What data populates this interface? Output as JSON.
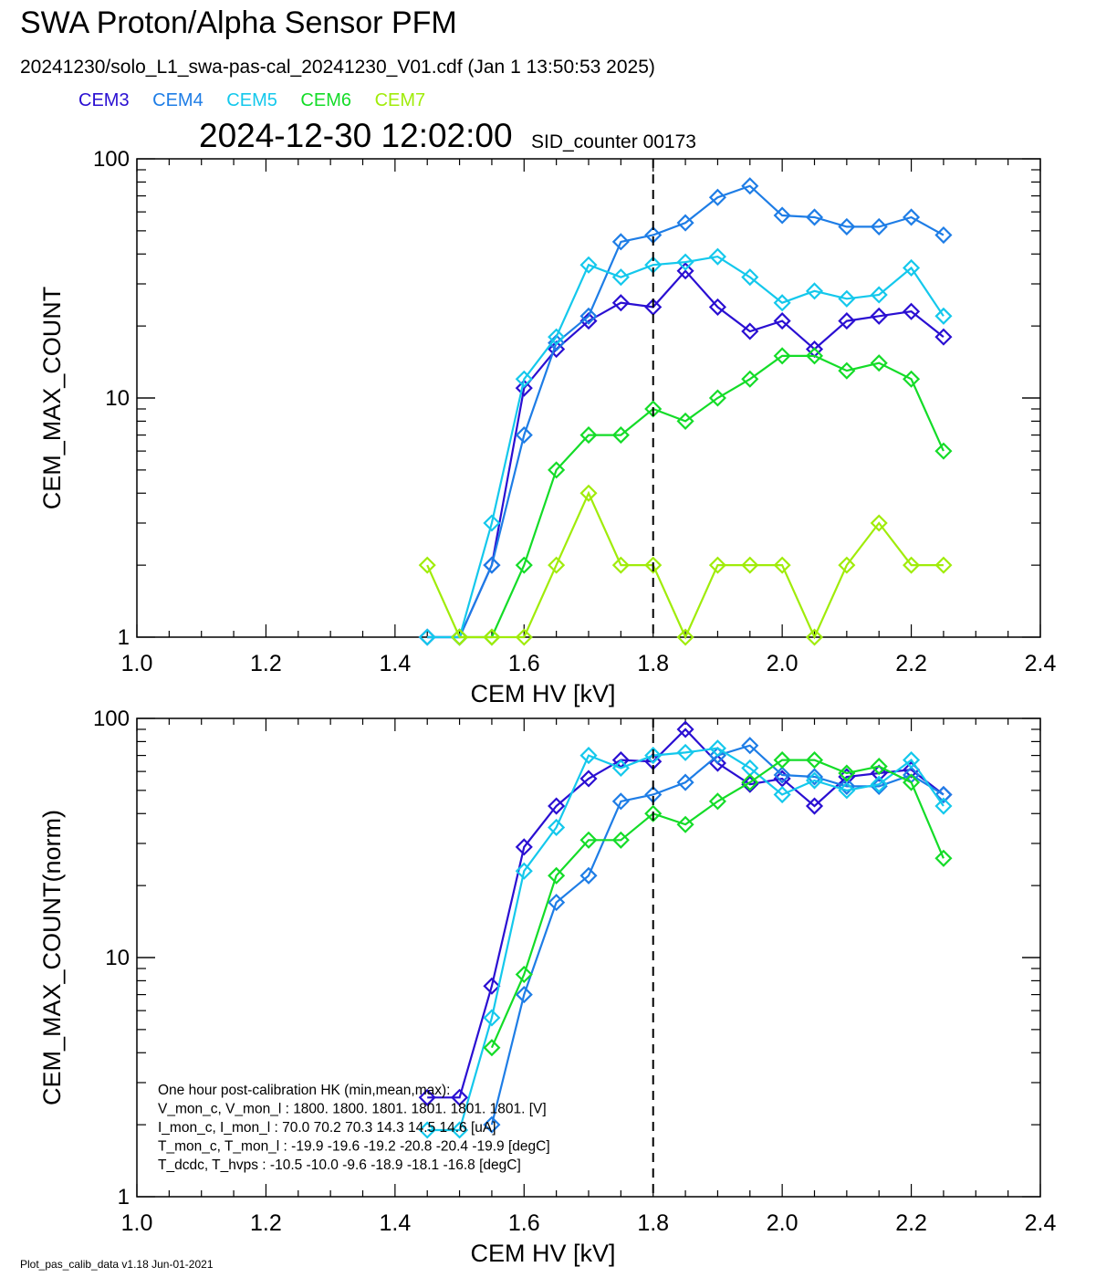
{
  "title": "SWA Proton/Alpha Sensor PFM",
  "file_line": "20241230/solo_L1_swa-pas-cal_20241230_V01.cdf  (Jan  1 13:50:53 2025)",
  "legend": [
    {
      "name": "CEM3",
      "color": "#2a0fd2"
    },
    {
      "name": "CEM4",
      "color": "#1e7de6"
    },
    {
      "name": "CEM5",
      "color": "#14c8ec"
    },
    {
      "name": "CEM6",
      "color": "#14dc28"
    },
    {
      "name": "CEM7",
      "color": "#a0ec0a"
    }
  ],
  "timestamp": "2024-12-30 12:02:00",
  "sid_counter": "SID_counter 00173",
  "footer": "Plot_pas_calib_data v1.18 Jun-01-2021",
  "hk_box": {
    "lines": [
      "One hour post-calibration HK (min,mean,max):",
      "V_mon_c, V_mon_l :    1800.  1800.  1801.       1801.  1801.  1801. [V]",
      "I_mon_c,  I_mon_l :     70.0   70.2   70.3        14.3   14.5   14.6  [uA]",
      "T_mon_c, T_mon_l :   -19.9  -19.6  -19.2        -20.8  -20.4  -19.9  [degC]",
      "T_dcdc,    T_hvps :    -10.5  -10.0   -9.6        -18.9  -18.1  -16.8  [degC]"
    ]
  },
  "chart_data": [
    {
      "type": "line",
      "xlabel": "CEM HV [kV]",
      "ylabel": "CEM_MAX_COUNT",
      "xlim": [
        1.0,
        2.4
      ],
      "ylim": [
        1,
        100
      ],
      "yscale": "log",
      "x_ticks": [
        "1.0",
        "1.2",
        "1.4",
        "1.6",
        "1.8",
        "2.0",
        "2.2",
        "2.4"
      ],
      "y_ticks": [
        "1",
        "10",
        "100"
      ],
      "marker": "diamond",
      "vline_x": 1.8,
      "x": [
        1.45,
        1.5,
        1.55,
        1.6,
        1.65,
        1.7,
        1.75,
        1.8,
        1.85,
        1.9,
        1.95,
        2.0,
        2.05,
        2.1,
        2.15,
        2.2,
        2.25
      ],
      "series": [
        {
          "name": "CEM3",
          "color": "#2a0fd2",
          "values": [
            1,
            1,
            2,
            11,
            16,
            21,
            25,
            24,
            34,
            24,
            19,
            21,
            16,
            21,
            22,
            23,
            18
          ]
        },
        {
          "name": "CEM4",
          "color": "#1e7de6",
          "values": [
            1,
            1,
            2,
            7,
            17,
            22,
            45,
            48,
            54,
            69,
            77,
            58,
            57,
            52,
            52,
            57,
            48
          ]
        },
        {
          "name": "CEM5",
          "color": "#14c8ec",
          "values": [
            1,
            1,
            3,
            12,
            18,
            36,
            32,
            36,
            37,
            39,
            32,
            25,
            28,
            26,
            27,
            35,
            22
          ]
        },
        {
          "name": "CEM6",
          "color": "#14dc28",
          "values": [
            null,
            1,
            1,
            2,
            5,
            7,
            7,
            9,
            8,
            10,
            12,
            15,
            15,
            13,
            14,
            12,
            6
          ]
        },
        {
          "name": "CEM7",
          "color": "#a0ec0a",
          "values": [
            2,
            1,
            1,
            1,
            2,
            4,
            2,
            2,
            1,
            2,
            2,
            2,
            1,
            2,
            3,
            2,
            2
          ]
        }
      ]
    },
    {
      "type": "line",
      "xlabel": "CEM HV [kV]",
      "ylabel": "CEM_MAX_COUNT(norm)",
      "xlim": [
        1.0,
        2.4
      ],
      "ylim": [
        1,
        100
      ],
      "yscale": "log",
      "x_ticks": [
        "1.0",
        "1.2",
        "1.4",
        "1.6",
        "1.8",
        "2.0",
        "2.2",
        "2.4"
      ],
      "y_ticks": [
        "1",
        "10",
        "100"
      ],
      "marker": "diamond",
      "vline_x": 1.8,
      "x": [
        1.45,
        1.5,
        1.55,
        1.6,
        1.65,
        1.7,
        1.75,
        1.8,
        1.85,
        1.9,
        1.95,
        2.0,
        2.05,
        2.1,
        2.15,
        2.2,
        2.25
      ],
      "series": [
        {
          "name": "CEM3",
          "color": "#2a0fd2",
          "values": [
            2.6,
            2.6,
            7.6,
            29,
            43,
            56,
            67,
            66,
            90,
            65,
            53,
            56,
            43,
            57,
            59,
            61,
            48
          ]
        },
        {
          "name": "CEM4",
          "color": "#1e7de6",
          "values": [
            null,
            null,
            2.0,
            7.0,
            17,
            22,
            45,
            48,
            54,
            70,
            77,
            58,
            57,
            52,
            52,
            58,
            48
          ]
        },
        {
          "name": "CEM5",
          "color": "#14c8ec",
          "values": [
            1.9,
            1.9,
            5.6,
            23,
            35,
            70,
            62,
            70,
            72,
            75,
            62,
            48,
            55,
            50,
            53,
            67,
            43
          ]
        },
        {
          "name": "CEM6",
          "color": "#14dc28",
          "values": [
            null,
            null,
            4.2,
            8.5,
            22,
            31,
            31,
            40,
            36,
            45,
            54,
            67,
            67,
            59,
            63,
            54,
            26
          ]
        }
      ]
    }
  ]
}
